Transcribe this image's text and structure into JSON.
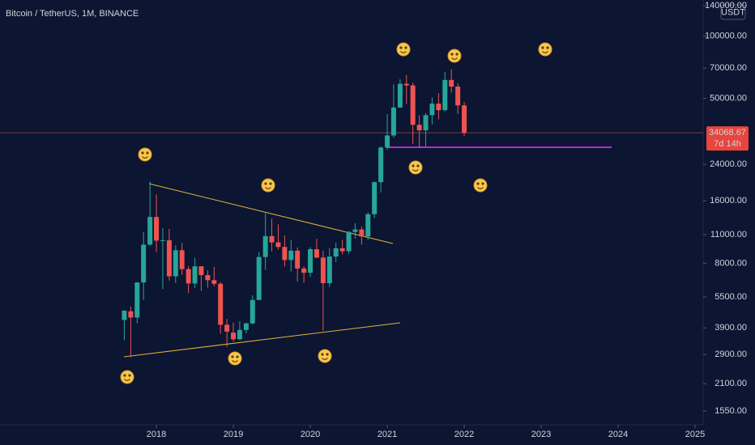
{
  "chart_data": {
    "type": "candlestick",
    "title": "Bitcoin / TetherUS, 1M, BINANCE",
    "currency": "USDT",
    "x": [
      2017.583,
      2017.667,
      2017.75,
      2017.833,
      2017.917,
      2018,
      2018.083,
      2018.167,
      2018.25,
      2018.333,
      2018.417,
      2018.5,
      2018.583,
      2018.667,
      2018.75,
      2018.833,
      2018.917,
      2019,
      2019.083,
      2019.167,
      2019.25,
      2019.333,
      2019.417,
      2019.5,
      2019.583,
      2019.667,
      2019.75,
      2019.833,
      2019.917,
      2020,
      2020.083,
      2020.167,
      2020.25,
      2020.333,
      2020.417,
      2020.5,
      2020.583,
      2020.667,
      2020.75,
      2020.833,
      2020.917,
      2021,
      2021.083,
      2021.167,
      2021.25,
      2021.333,
      2021.417,
      2021.5,
      2021.583,
      2021.667,
      2021.75,
      2021.833,
      2021.917,
      2022
    ],
    "open": [
      4261,
      4690,
      4378,
      6463,
      9838,
      13380,
      10285,
      10325,
      6922,
      9246,
      7500,
      6391,
      7735,
      7011,
      6626,
      6370,
      4041,
      3701,
      3437,
      3814,
      4102,
      5321,
      8574,
      10817,
      10086,
      9588,
      8293,
      9199,
      7546,
      7195,
      9351,
      8523,
      6412,
      8620,
      9448,
      9145,
      11335,
      11649,
      10776,
      13791,
      19695,
      28923,
      33092,
      45134,
      58739,
      57697,
      37253,
      35045,
      41461,
      47100,
      43820,
      61300,
      56951,
      46216
    ],
    "high": [
      4745,
      4939,
      6470,
      11300,
      19798,
      17176,
      11786,
      11710,
      9759,
      10020,
      7760,
      8500,
      7750,
      7410,
      7680,
      6500,
      4312,
      4140,
      4198,
      4140,
      5600,
      9074,
      13970,
      13147,
      12325,
      10905,
      10370,
      9530,
      7750,
      9578,
      10500,
      9188,
      9468,
      10067,
      10380,
      11444,
      12468,
      12050,
      14100,
      19863,
      29300,
      41950,
      58352,
      61844,
      64854,
      59500,
      41330,
      42448,
      50500,
      52920,
      67000,
      69000,
      59053,
      47990
    ],
    "low": [
      3400,
      2817,
      4110,
      5325,
      9722,
      9035,
      6000,
      6600,
      6430,
      7032,
      5750,
      6070,
      5880,
      6100,
      6200,
      3652,
      3157,
      3349,
      3400,
      3670,
      4067,
      5320,
      7440,
      9110,
      9320,
      7710,
      7300,
      6515,
      6435,
      6871,
      8450,
      3782,
      6150,
      8117,
      8833,
      8893,
      10518,
      9825,
      10375,
      13195,
      17572,
      28130,
      32296,
      44950,
      47044,
      30000,
      28805,
      29278,
      37332,
      39600,
      43283,
      53256,
      42000,
      32917
    ],
    "close": [
      4724,
      4378,
      6463,
      9838,
      13380,
      10285,
      10326,
      6923,
      9246,
      7494,
      6391,
      7730,
      7011,
      6626,
      6371,
      4041,
      3742,
      3437,
      3812,
      4103,
      5320,
      8574,
      10817,
      10086,
      9588,
      8293,
      9199,
      7546,
      7195,
      9352,
      8523,
      6410,
      8620,
      9448,
      9138,
      11335,
      11649,
      10776,
      13791,
      19695,
      28923,
      33092,
      45135,
      58740,
      57694,
      37253,
      35045,
      41462,
      47100,
      43824,
      61299,
      56950,
      46217,
      34068.67
    ],
    "up_color": "#26a69a",
    "down_color": "#ef5350",
    "last_price": 34068.67,
    "countdown": "7d 14h",
    "xlim": [
      2015.968,
      2025.105
    ],
    "xticks": [
      2018,
      2019,
      2020,
      2021,
      2022,
      2023,
      2024,
      2025
    ],
    "ylim": [
      1330,
      149000
    ],
    "log_scale": true,
    "yticks": [
      {
        "value": 1550,
        "label": "1550.00"
      },
      {
        "value": 2100,
        "label": "2100.00"
      },
      {
        "value": 2900,
        "label": "2900.00"
      },
      {
        "value": 3900,
        "label": "3900.00"
      },
      {
        "value": 5500,
        "label": "5500.00"
      },
      {
        "value": 8000,
        "label": "8000.00"
      },
      {
        "value": 11000,
        "label": "11000.00"
      },
      {
        "value": 16000,
        "label": "16000.00"
      },
      {
        "value": 24000,
        "label": "24000.00"
      },
      {
        "value": 50000,
        "label": "50000.00"
      },
      {
        "value": 70000,
        "label": "70000.00"
      },
      {
        "value": 100000,
        "label": "100000.00"
      },
      {
        "value": 140000,
        "label": "140000.00"
      }
    ]
  }
}
